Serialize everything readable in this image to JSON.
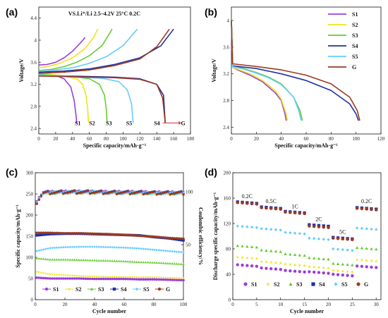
{
  "colors": {
    "S1": "#9b3fd6",
    "S2": "#f2e21a",
    "S3": "#66cc33",
    "S4": "#1f2fa8",
    "S5": "#66ccff",
    "G": "#9b3a1f"
  },
  "panels": [
    {
      "id": "a",
      "label": "(a)",
      "type": "line",
      "annotation": "VS.Li⁺/Li 2.5–4.2V 25°C 0.2C",
      "xlabel": "Specific capacity/mAh·g⁻¹",
      "ylabel": "Voltage/V",
      "xlim": [
        0,
        180
      ],
      "ylim": [
        2.3,
        4.6
      ],
      "xticks": [
        0,
        20,
        40,
        60,
        80,
        100,
        120,
        140,
        160,
        180
      ],
      "yticks": [
        2.4,
        2.8,
        3.2,
        3.6,
        4.0,
        4.4
      ],
      "curve_labels": [
        "S1",
        "S2",
        "S3",
        "S5",
        "S4",
        "G"
      ],
      "series": [
        {
          "name": "S1",
          "charge_x": [
            0,
            10,
            20,
            30,
            40,
            50,
            55
          ],
          "charge_y": [
            3.55,
            3.56,
            3.6,
            3.68,
            3.8,
            3.96,
            4.05
          ],
          "discharge_x": [
            0,
            10,
            20,
            30,
            38,
            42,
            44,
            45
          ],
          "discharge_y": [
            3.4,
            3.38,
            3.36,
            3.3,
            3.15,
            2.9,
            2.65,
            2.5
          ]
        },
        {
          "name": "S2",
          "charge_x": [
            0,
            10,
            25,
            40,
            55,
            65,
            70
          ],
          "charge_y": [
            3.5,
            3.52,
            3.58,
            3.68,
            3.85,
            4.05,
            4.2
          ],
          "discharge_x": [
            0,
            15,
            30,
            45,
            52,
            56,
            58,
            59
          ],
          "discharge_y": [
            3.4,
            3.38,
            3.35,
            3.3,
            3.2,
            3.0,
            2.75,
            2.5
          ]
        },
        {
          "name": "S3",
          "charge_x": [
            0,
            15,
            30,
            45,
            60,
            75,
            87
          ],
          "charge_y": [
            3.45,
            3.47,
            3.52,
            3.6,
            3.72,
            3.9,
            4.2
          ],
          "discharge_x": [
            0,
            20,
            40,
            60,
            72,
            78,
            80,
            81
          ],
          "discharge_y": [
            3.38,
            3.36,
            3.34,
            3.3,
            3.2,
            3.0,
            2.75,
            2.5
          ]
        },
        {
          "name": "S4",
          "charge_x": [
            0,
            30,
            60,
            90,
            120,
            145,
            160
          ],
          "charge_y": [
            3.42,
            3.44,
            3.48,
            3.56,
            3.68,
            3.9,
            4.2
          ],
          "discharge_x": [
            0,
            30,
            60,
            90,
            120,
            140,
            148,
            150
          ],
          "discharge_y": [
            3.36,
            3.35,
            3.34,
            3.33,
            3.3,
            3.2,
            3.0,
            2.5
          ]
        },
        {
          "name": "S5",
          "charge_x": [
            0,
            20,
            40,
            60,
            80,
            100,
            117
          ],
          "charge_y": [
            3.44,
            3.46,
            3.5,
            3.58,
            3.7,
            3.9,
            4.2
          ],
          "discharge_x": [
            0,
            25,
            50,
            75,
            95,
            105,
            110,
            112
          ],
          "discharge_y": [
            3.37,
            3.35,
            3.33,
            3.31,
            3.25,
            3.1,
            2.85,
            2.5
          ]
        },
        {
          "name": "G",
          "charge_x": [
            0,
            30,
            60,
            90,
            120,
            140,
            155
          ],
          "charge_y": [
            3.4,
            3.42,
            3.46,
            3.54,
            3.66,
            3.88,
            4.2
          ],
          "discharge_x": [
            0,
            30,
            60,
            90,
            120,
            140,
            147,
            150
          ],
          "discharge_y": [
            3.35,
            3.34,
            3.33,
            3.32,
            3.29,
            3.2,
            2.95,
            2.5
          ]
        }
      ]
    },
    {
      "id": "b",
      "label": "(b)",
      "type": "line",
      "xlabel": "Specific capacity/mAh·g⁻¹",
      "ylabel": "Voltage/V",
      "xlim": [
        0,
        120
      ],
      "ylim": [
        2.3,
        4.2
      ],
      "xticks": [
        0,
        20,
        40,
        60,
        80,
        100,
        120
      ],
      "yticks": [
        2.4,
        2.8,
        3.2,
        3.6,
        4.0
      ],
      "legend": [
        "S1",
        "S2",
        "S3",
        "S4",
        "S5",
        "G"
      ],
      "series": [
        {
          "name": "S1",
          "x": [
            0,
            1,
            5,
            15,
            25,
            35,
            40,
            43,
            44
          ],
          "y": [
            4.0,
            3.3,
            3.26,
            3.18,
            3.08,
            2.92,
            2.8,
            2.6,
            2.5
          ]
        },
        {
          "name": "S2",
          "x": [
            0,
            1,
            5,
            15,
            25,
            35,
            40,
            44,
            45
          ],
          "y": [
            4.0,
            3.3,
            3.27,
            3.2,
            3.1,
            2.95,
            2.82,
            2.6,
            2.5
          ]
        },
        {
          "name": "S3",
          "x": [
            0,
            1,
            10,
            20,
            30,
            40,
            50,
            55,
            57
          ],
          "y": [
            4.0,
            3.32,
            3.28,
            3.22,
            3.15,
            3.05,
            2.85,
            2.65,
            2.5
          ]
        },
        {
          "name": "S4",
          "x": [
            0,
            1,
            20,
            40,
            60,
            80,
            95,
            100,
            102
          ],
          "y": [
            4.0,
            3.32,
            3.28,
            3.2,
            3.1,
            2.95,
            2.75,
            2.6,
            2.5
          ]
        },
        {
          "name": "S5",
          "x": [
            0,
            1,
            10,
            20,
            30,
            40,
            50,
            54,
            56
          ],
          "y": [
            4.0,
            3.31,
            3.27,
            3.21,
            3.14,
            3.04,
            2.85,
            2.65,
            2.5
          ]
        },
        {
          "name": "G",
          "x": [
            0,
            1,
            20,
            40,
            60,
            80,
            95,
            101,
            103
          ],
          "y": [
            4.0,
            3.35,
            3.31,
            3.26,
            3.18,
            3.05,
            2.85,
            2.65,
            2.5
          ]
        }
      ]
    },
    {
      "id": "c",
      "label": "(c)",
      "type": "scatter",
      "xlabel": "Cycle number",
      "ylabel": "Specific capacity/mAh·g⁻¹",
      "ylabel_right": "Coulombic efficiency/%",
      "xlim": [
        0,
        100
      ],
      "ylim": [
        0,
        300
      ],
      "xticks": [
        0,
        20,
        40,
        60,
        80,
        100
      ],
      "yticks": [
        0,
        50,
        100,
        150,
        200,
        250,
        300
      ],
      "yticks_right": [
        {
          "label": "50",
          "value": 130
        },
        {
          "label": "100",
          "value": 255
        }
      ],
      "legend": [
        "S1",
        "S2",
        "S3",
        "S4",
        "S5",
        "G"
      ],
      "series": [
        {
          "name": "S1",
          "x": [
            1,
            10,
            20,
            30,
            40,
            50,
            60,
            70,
            80,
            90,
            100
          ],
          "y": [
            52,
            50,
            50,
            50,
            49,
            49,
            49,
            48,
            48,
            47,
            46
          ]
        },
        {
          "name": "S2",
          "x": [
            1,
            10,
            20,
            30,
            40,
            50,
            60,
            70,
            80,
            90,
            100
          ],
          "y": [
            66,
            60,
            58,
            56,
            55,
            54,
            54,
            53,
            53,
            52,
            51
          ]
        },
        {
          "name": "S3",
          "x": [
            1,
            10,
            20,
            30,
            40,
            50,
            60,
            70,
            80,
            90,
            100
          ],
          "y": [
            98,
            95,
            95,
            94,
            93,
            92,
            91,
            89,
            88,
            86,
            84
          ]
        },
        {
          "name": "S4",
          "x": [
            1,
            10,
            20,
            30,
            40,
            50,
            60,
            70,
            80,
            90,
            100
          ],
          "y": [
            152,
            155,
            156,
            156,
            155,
            154,
            153,
            152,
            148,
            145,
            140
          ]
        },
        {
          "name": "S5",
          "x": [
            1,
            10,
            20,
            30,
            40,
            50,
            60,
            70,
            80,
            90,
            100
          ],
          "y": [
            115,
            122,
            124,
            125,
            125,
            124,
            123,
            121,
            118,
            115,
            112
          ]
        },
        {
          "name": "G",
          "x": [
            1,
            10,
            20,
            30,
            40,
            50,
            60,
            70,
            80,
            90,
            100
          ],
          "y": [
            158,
            158,
            157,
            157,
            156,
            155,
            153,
            151,
            149,
            146,
            144
          ]
        }
      ],
      "efficiency_band": {
        "x": [
          1,
          5,
          10,
          20,
          30,
          40,
          50,
          60,
          70,
          80,
          90,
          100
        ],
        "y": [
          230,
          252,
          253,
          254,
          254,
          254,
          253,
          253,
          253,
          252,
          252,
          252
        ]
      }
    },
    {
      "id": "d",
      "label": "(d)",
      "type": "scatter",
      "xlabel": "Cycle number",
      "ylabel": "Discharge specific capacity/mAh·g⁻¹",
      "xlim": [
        0,
        31
      ],
      "ylim": [
        0,
        200
      ],
      "xticks": [
        0,
        5,
        10,
        15,
        20,
        25,
        30
      ],
      "yticks": [
        0,
        40,
        80,
        120,
        160,
        200
      ],
      "legend": [
        "S1",
        "S2",
        "S3",
        "S4",
        "S5",
        "G"
      ],
      "rate_labels": [
        {
          "text": "0.2C",
          "x": 3,
          "y": 160
        },
        {
          "text": "0.5C",
          "x": 8,
          "y": 152
        },
        {
          "text": "1C",
          "x": 13,
          "y": 144
        },
        {
          "text": "2C",
          "x": 18,
          "y": 124
        },
        {
          "text": "5C",
          "x": 23,
          "y": 104
        },
        {
          "text": "0.2C",
          "x": 28,
          "y": 152
        }
      ],
      "series": [
        {
          "name": "S1",
          "levels": [
            55,
            50,
            46,
            44,
            40,
            53
          ]
        },
        {
          "name": "S2",
          "levels": [
            67,
            60,
            56,
            52,
            46,
            63
          ]
        },
        {
          "name": "S3",
          "levels": [
            85,
            78,
            72,
            66,
            57,
            82
          ]
        },
        {
          "name": "S4",
          "levels": [
            154,
            146,
            139,
            118,
            98,
            145
          ]
        },
        {
          "name": "S5",
          "levels": [
            116,
            112,
            106,
            97,
            80,
            113
          ]
        },
        {
          "name": "G",
          "levels": [
            153,
            145,
            138,
            116,
            97,
            144
          ]
        }
      ]
    }
  ]
}
